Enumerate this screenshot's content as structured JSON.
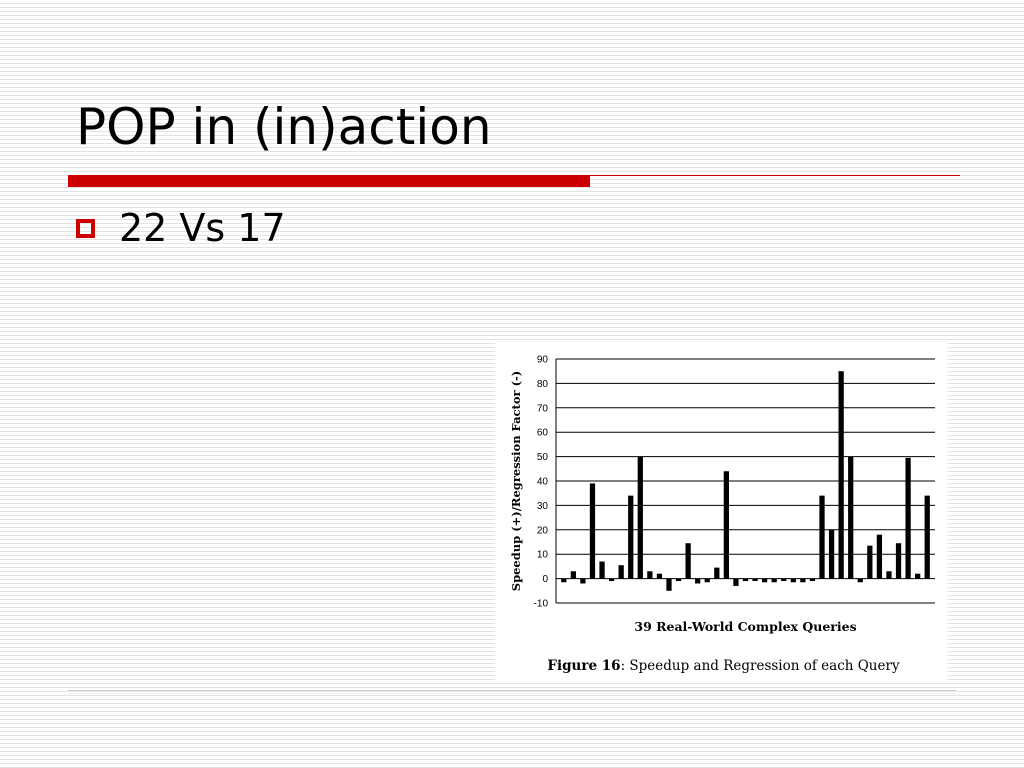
{
  "slide": {
    "title": "POP in (in)action",
    "bullet_text": "22 Vs 17"
  },
  "colors": {
    "accent": "#cc0000",
    "bar": "#000000"
  },
  "chart_data": {
    "type": "bar",
    "ylabel": "Speedup (+)/Regression Factor (-)",
    "xlabel": "39 Real-World Complex Queries",
    "caption_bold": "Figure 16",
    "caption_rest": ": Speedup and Regression of each Query",
    "ylim": [
      -10,
      90
    ],
    "yticks": [
      90,
      80,
      70,
      60,
      50,
      40,
      30,
      20,
      10,
      0,
      -10
    ],
    "grid": true,
    "values": [
      -1.5,
      3,
      -2,
      39,
      7,
      -1,
      5.5,
      34,
      50,
      3,
      2,
      -5,
      -1,
      14.5,
      -2,
      -1.5,
      4.5,
      44,
      -3,
      -1,
      -1,
      -1.5,
      -1.5,
      -1,
      -1.5,
      -1.5,
      -1,
      34,
      20,
      85,
      50,
      -1.5,
      13.5,
      18,
      3,
      14.5,
      49.5,
      2,
      34
    ]
  }
}
